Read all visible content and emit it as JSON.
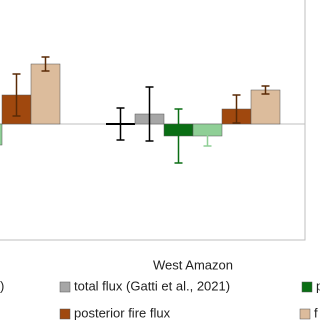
{
  "chart_data": {
    "type": "bar",
    "categories": [
      null,
      "West Amazon"
    ],
    "ylim": [
      -1.16,
      1.24
    ],
    "series": [
      {
        "name": ")",
        "color": "#000000",
        "marker": "dash",
        "values": [
          null,
          0
        ],
        "errors": [
          null,
          0.16
        ]
      },
      {
        "name": "total flux (Gatti et al., 2021)",
        "color": "#a6a6a6",
        "values": [
          null,
          0.1
        ],
        "errors": [
          null,
          0.27
        ]
      },
      {
        "name": "p",
        "color": "#0a6e14",
        "values": [
          null,
          -0.12
        ],
        "errors": [
          null,
          0.27
        ]
      },
      {
        "color": "#8fcf96",
        "values": [
          -0.21,
          -0.12
        ],
        "errors": [
          null,
          0.1
        ]
      },
      {
        "name": "posterior fire flux",
        "color": "#a0480e",
        "values": [
          0.29,
          0.15
        ],
        "errors": [
          0.21,
          0.14
        ]
      },
      {
        "name": "f",
        "color": "#dcbc9c",
        "values": [
          0.6,
          0.34
        ],
        "errors": [
          0.07,
          0.04
        ]
      }
    ]
  }
}
